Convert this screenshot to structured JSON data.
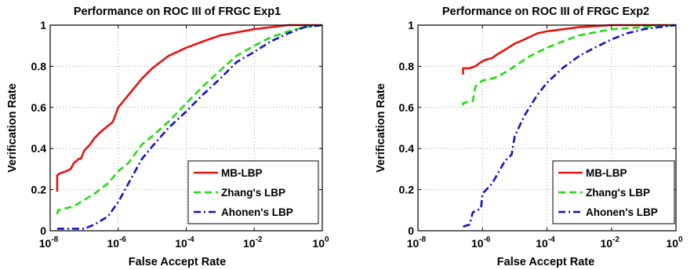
{
  "chart_data": [
    {
      "type": "line",
      "title": "Performance on ROC III of FRGC Exp1",
      "xlabel": "False Accept Rate",
      "ylabel": "Verification Rate",
      "xscale": "log",
      "xlim": [
        1e-08,
        1
      ],
      "ylim": [
        0,
        1
      ],
      "xticks": [
        {
          "base": "10",
          "exp": "-8",
          "value": 1e-08
        },
        {
          "base": "10",
          "exp": "-6",
          "value": 1e-06
        },
        {
          "base": "10",
          "exp": "-4",
          "value": 0.0001
        },
        {
          "base": "10",
          "exp": "-2",
          "value": 0.01
        },
        {
          "base": "10",
          "exp": "0",
          "value": 1
        }
      ],
      "yticks": [
        "0",
        "0.2",
        "0.4",
        "0.6",
        "0.8",
        "1"
      ],
      "grid": true,
      "legend_position": "bottom-right",
      "series": [
        {
          "name": "MB-LBP",
          "color": "#e8120c",
          "style": "solid",
          "points": [
            [
              1.6e-08,
              0.19
            ],
            [
              1.6e-08,
              0.27
            ],
            [
              2e-08,
              0.28
            ],
            [
              3e-08,
              0.29
            ],
            [
              4e-08,
              0.3
            ],
            [
              5e-08,
              0.33
            ],
            [
              6e-08,
              0.34
            ],
            [
              7e-08,
              0.35
            ],
            [
              8e-08,
              0.35
            ],
            [
              1e-07,
              0.39
            ],
            [
              1.5e-07,
              0.42
            ],
            [
              2e-07,
              0.45
            ],
            [
              3e-07,
              0.48
            ],
            [
              5e-07,
              0.51
            ],
            [
              7e-07,
              0.53
            ],
            [
              1e-06,
              0.6
            ],
            [
              2e-06,
              0.66
            ],
            [
              5e-06,
              0.74
            ],
            [
              1e-05,
              0.79
            ],
            [
              3e-05,
              0.85
            ],
            [
              0.0001,
              0.89
            ],
            [
              0.0003,
              0.92
            ],
            [
              0.001,
              0.95
            ],
            [
              0.01,
              0.98
            ],
            [
              0.1,
              1.0
            ],
            [
              1,
              1.0
            ]
          ]
        },
        {
          "name": "Zhang's LBP",
          "color": "#22dd11",
          "style": "dashed",
          "points": [
            [
              1.6e-08,
              0.08
            ],
            [
              1.7e-08,
              0.1
            ],
            [
              3e-08,
              0.11
            ],
            [
              5e-08,
              0.12
            ],
            [
              1e-07,
              0.15
            ],
            [
              2e-07,
              0.18
            ],
            [
              5e-07,
              0.23
            ],
            [
              1e-06,
              0.29
            ],
            [
              2e-06,
              0.33
            ],
            [
              5e-06,
              0.42
            ],
            [
              1e-05,
              0.46
            ],
            [
              3e-05,
              0.53
            ],
            [
              0.0001,
              0.62
            ],
            [
              0.0003,
              0.7
            ],
            [
              0.001,
              0.78
            ],
            [
              0.003,
              0.85
            ],
            [
              0.01,
              0.9
            ],
            [
              0.03,
              0.94
            ],
            [
              0.1,
              0.97
            ],
            [
              0.3,
              0.99
            ],
            [
              1,
              1.0
            ]
          ]
        },
        {
          "name": "Ahonen's LBP",
          "color": "#1111cc",
          "style": "dashdot",
          "points": [
            [
              1.6e-08,
              0.01
            ],
            [
              5e-08,
              0.01
            ],
            [
              1e-07,
              0.01
            ],
            [
              2e-07,
              0.03
            ],
            [
              5e-07,
              0.07
            ],
            [
              1e-06,
              0.14
            ],
            [
              2e-06,
              0.23
            ],
            [
              5e-06,
              0.35
            ],
            [
              1e-05,
              0.41
            ],
            [
              3e-05,
              0.5
            ],
            [
              0.0001,
              0.58
            ],
            [
              0.0003,
              0.66
            ],
            [
              0.001,
              0.74
            ],
            [
              0.003,
              0.82
            ],
            [
              0.01,
              0.87
            ],
            [
              0.03,
              0.92
            ],
            [
              0.1,
              0.96
            ],
            [
              0.3,
              0.99
            ],
            [
              1,
              1.0
            ]
          ]
        }
      ]
    },
    {
      "type": "line",
      "title": "Performance on ROC III of FRGC Exp2",
      "xlabel": "False Accept Rate",
      "ylabel": "Verification Rate",
      "xscale": "log",
      "xlim": [
        1e-08,
        1
      ],
      "ylim": [
        0,
        1
      ],
      "xticks": [
        {
          "base": "10",
          "exp": "-8",
          "value": 1e-08
        },
        {
          "base": "10",
          "exp": "-6",
          "value": 1e-06
        },
        {
          "base": "10",
          "exp": "-4",
          "value": 0.0001
        },
        {
          "base": "10",
          "exp": "-2",
          "value": 0.01
        },
        {
          "base": "10",
          "exp": "0",
          "value": 1
        }
      ],
      "yticks": [
        "0",
        "0.2",
        "0.4",
        "0.6",
        "0.8",
        "1"
      ],
      "grid": true,
      "legend_position": "bottom-right",
      "series": [
        {
          "name": "MB-LBP",
          "color": "#e8120c",
          "style": "solid",
          "points": [
            [
              2.5e-07,
              0.76
            ],
            [
              2.5e-07,
              0.79
            ],
            [
              4e-07,
              0.79
            ],
            [
              6e-07,
              0.8
            ],
            [
              9e-07,
              0.82
            ],
            [
              1.2e-06,
              0.83
            ],
            [
              2e-06,
              0.84
            ],
            [
              3e-06,
              0.86
            ],
            [
              5e-06,
              0.88
            ],
            [
              1e-05,
              0.91
            ],
            [
              2e-05,
              0.93
            ],
            [
              5e-05,
              0.96
            ],
            [
              0.0001,
              0.97
            ],
            [
              0.001,
              0.99
            ],
            [
              0.01,
              1.0
            ],
            [
              1,
              1.0
            ]
          ]
        },
        {
          "name": "Zhang's LBP",
          "color": "#22dd11",
          "style": "dashed",
          "points": [
            [
              2.5e-07,
              0.61
            ],
            [
              2.5e-07,
              0.62
            ],
            [
              4e-07,
              0.63
            ],
            [
              5e-07,
              0.63
            ],
            [
              6e-07,
              0.7
            ],
            [
              8e-07,
              0.72
            ],
            [
              1e-06,
              0.73
            ],
            [
              2e-06,
              0.74
            ],
            [
              3e-06,
              0.75
            ],
            [
              5e-06,
              0.77
            ],
            [
              1e-05,
              0.8
            ],
            [
              3e-05,
              0.85
            ],
            [
              0.0001,
              0.89
            ],
            [
              0.0003,
              0.92
            ],
            [
              0.001,
              0.95
            ],
            [
              0.01,
              0.98
            ],
            [
              0.1,
              0.99
            ],
            [
              1,
              1.0
            ]
          ]
        },
        {
          "name": "Ahonen's LBP",
          "color": "#1111cc",
          "style": "dashdot",
          "points": [
            [
              2.5e-07,
              0.02
            ],
            [
              4e-07,
              0.03
            ],
            [
              5e-07,
              0.09
            ],
            [
              7e-07,
              0.1
            ],
            [
              9e-07,
              0.11
            ],
            [
              1e-06,
              0.18
            ],
            [
              2e-06,
              0.23
            ],
            [
              5e-06,
              0.34
            ],
            [
              8e-06,
              0.37
            ],
            [
              1e-05,
              0.46
            ],
            [
              2e-05,
              0.56
            ],
            [
              5e-05,
              0.66
            ],
            [
              0.0001,
              0.72
            ],
            [
              0.0003,
              0.79
            ],
            [
              0.001,
              0.85
            ],
            [
              0.003,
              0.89
            ],
            [
              0.01,
              0.93
            ],
            [
              0.03,
              0.96
            ],
            [
              0.1,
              0.98
            ],
            [
              0.3,
              0.99
            ],
            [
              1,
              1.0
            ]
          ]
        }
      ]
    }
  ]
}
